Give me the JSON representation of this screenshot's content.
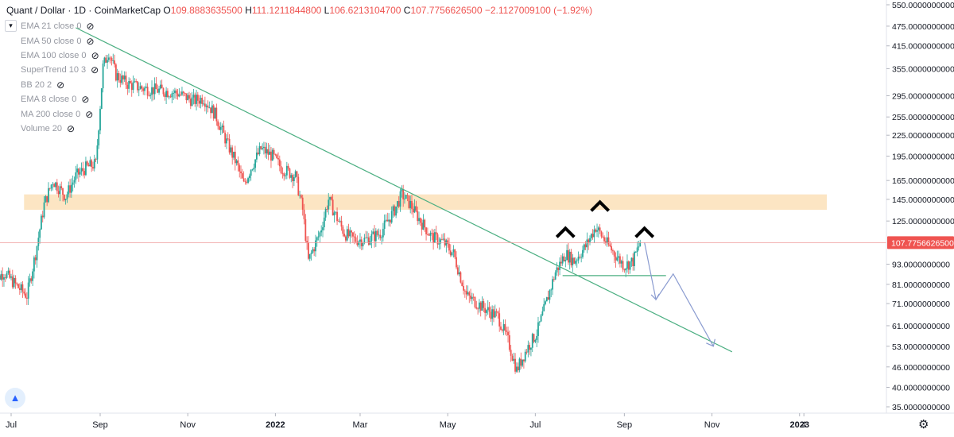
{
  "header": {
    "symbol": "Quant / Dollar · 1D · CoinMarketCap",
    "open_label": "O",
    "open": "109.8883635500",
    "high_label": "H",
    "high": "111.1211844800",
    "low_label": "L",
    "low": "106.6213104700",
    "close_label": "C",
    "close": "107.7756626500",
    "change": "−2.1127009100 (−1.92%)"
  },
  "indicators": [
    {
      "label": "EMA 21 close 0"
    },
    {
      "label": "EMA 50 close 0"
    },
    {
      "label": "EMA 100 close 0"
    },
    {
      "label": "SuperTrend 10 3"
    },
    {
      "label": "BB 20 2"
    },
    {
      "label": "EMA 8 close 0"
    },
    {
      "label": "MA 200 close 0"
    },
    {
      "label": "Volume 20"
    }
  ],
  "icons": {
    "collapse": "chevron-down-icon",
    "eye": "eye-off-icon",
    "logo": "tradingview-logo-icon",
    "settings": "gear-icon"
  },
  "colors": {
    "up": "#26a69a",
    "down": "#ef5350",
    "trend": "#4caf82",
    "zone": "#fce2bd",
    "arrow": "#8a9bd0",
    "price_line": "#ef9a9a"
  },
  "chart_data": {
    "type": "candlestick",
    "scale": "log",
    "y_ticks": [
      "550.0000000000",
      "475.0000000000",
      "415.0000000000",
      "355.0000000000",
      "295.0000000000",
      "255.0000000000",
      "225.0000000000",
      "195.0000000000",
      "165.0000000000",
      "145.0000000000",
      "125.0000000000",
      "93.0000000000",
      "81.0000000000",
      "71.0000000000",
      "61.0000000000",
      "53.0000000000",
      "46.0000000000",
      "40.0000000000",
      "35.0000000000"
    ],
    "last_price": "107.7756626500",
    "x_ticks": [
      {
        "label": "Jul",
        "date": "2021-07-01"
      },
      {
        "label": "Sep",
        "date": "2021-09-01"
      },
      {
        "label": "Nov",
        "date": "2021-11-01"
      },
      {
        "label": "2022",
        "date": "2022-01-01"
      },
      {
        "label": "Mar",
        "date": "2022-03-01"
      },
      {
        "label": "May",
        "date": "2022-05-01"
      },
      {
        "label": "Jul",
        "date": "2022-07-01"
      },
      {
        "label": "Sep",
        "date": "2022-09-01"
      },
      {
        "label": "Nov",
        "date": "2022-11-01"
      },
      {
        "label": "2023",
        "date": "2023-01-01"
      },
      {
        "label": "4",
        "date": "2023-01-04"
      }
    ],
    "price_path": [
      [
        "2021-06-18",
        82
      ],
      [
        "2021-06-26",
        88
      ],
      [
        "2021-07-05",
        80
      ],
      [
        "2021-07-12",
        75
      ],
      [
        "2021-07-18",
        100
      ],
      [
        "2021-07-24",
        140
      ],
      [
        "2021-07-30",
        165
      ],
      [
        "2021-08-08",
        148
      ],
      [
        "2021-08-15",
        170
      ],
      [
        "2021-08-22",
        180
      ],
      [
        "2021-08-29",
        185
      ],
      [
        "2021-09-03",
        360
      ],
      [
        "2021-09-07",
        400
      ],
      [
        "2021-09-12",
        340
      ],
      [
        "2021-09-20",
        320
      ],
      [
        "2021-10-01",
        310
      ],
      [
        "2021-10-15",
        305
      ],
      [
        "2021-10-25",
        300
      ],
      [
        "2021-11-05",
        285
      ],
      [
        "2021-11-12",
        290
      ],
      [
        "2021-11-20",
        260
      ],
      [
        "2021-11-28",
        215
      ],
      [
        "2021-12-05",
        185
      ],
      [
        "2021-12-10",
        160
      ],
      [
        "2021-12-15",
        180
      ],
      [
        "2021-12-22",
        205
      ],
      [
        "2021-12-30",
        195
      ],
      [
        "2022-01-05",
        180
      ],
      [
        "2022-01-15",
        170
      ],
      [
        "2022-01-20",
        135
      ],
      [
        "2022-01-24",
        95
      ],
      [
        "2022-01-28",
        105
      ],
      [
        "2022-02-01",
        115
      ],
      [
        "2022-02-07",
        145
      ],
      [
        "2022-02-12",
        130
      ],
      [
        "2022-02-18",
        115
      ],
      [
        "2022-02-25",
        110
      ],
      [
        "2022-03-05",
        110
      ],
      [
        "2022-03-15",
        115
      ],
      [
        "2022-03-25",
        135
      ],
      [
        "2022-03-30",
        150
      ],
      [
        "2022-04-05",
        140
      ],
      [
        "2022-04-12",
        125
      ],
      [
        "2022-04-20",
        112
      ],
      [
        "2022-04-28",
        108
      ],
      [
        "2022-05-05",
        100
      ],
      [
        "2022-05-10",
        85
      ],
      [
        "2022-05-14",
        75
      ],
      [
        "2022-05-20",
        72
      ],
      [
        "2022-05-28",
        68
      ],
      [
        "2022-06-05",
        65
      ],
      [
        "2022-06-12",
        55
      ],
      [
        "2022-06-18",
        45
      ],
      [
        "2022-06-25",
        52
      ],
      [
        "2022-07-02",
        58
      ],
      [
        "2022-07-08",
        70
      ],
      [
        "2022-07-15",
        88
      ],
      [
        "2022-07-22",
        100
      ],
      [
        "2022-07-28",
        95
      ],
      [
        "2022-08-05",
        105
      ],
      [
        "2022-08-12",
        120
      ],
      [
        "2022-08-18",
        110
      ],
      [
        "2022-08-25",
        100
      ],
      [
        "2022-09-01",
        92
      ],
      [
        "2022-09-07",
        95
      ],
      [
        "2022-09-12",
        107.78
      ]
    ],
    "support_zone": {
      "from": 135,
      "to": 150,
      "start": "2021-07-10",
      "end": "2023-01-20"
    },
    "neckline": {
      "value": 86,
      "start": "2022-07-20",
      "end": "2022-09-30"
    },
    "trendline": {
      "start": [
        "2021-08-15",
        470
      ],
      "end": [
        "2022-11-15",
        51
      ]
    },
    "shoulders": [
      {
        "date": "2022-07-22",
        "value": 117
      },
      {
        "date": "2022-08-15",
        "value": 140
      },
      {
        "date": "2022-09-15",
        "value": 117
      }
    ],
    "projection": [
      [
        "2022-09-15",
        108
      ],
      [
        "2022-09-23",
        73
      ],
      [
        "2022-10-05",
        87
      ],
      [
        "2022-11-02",
        53
      ]
    ]
  }
}
